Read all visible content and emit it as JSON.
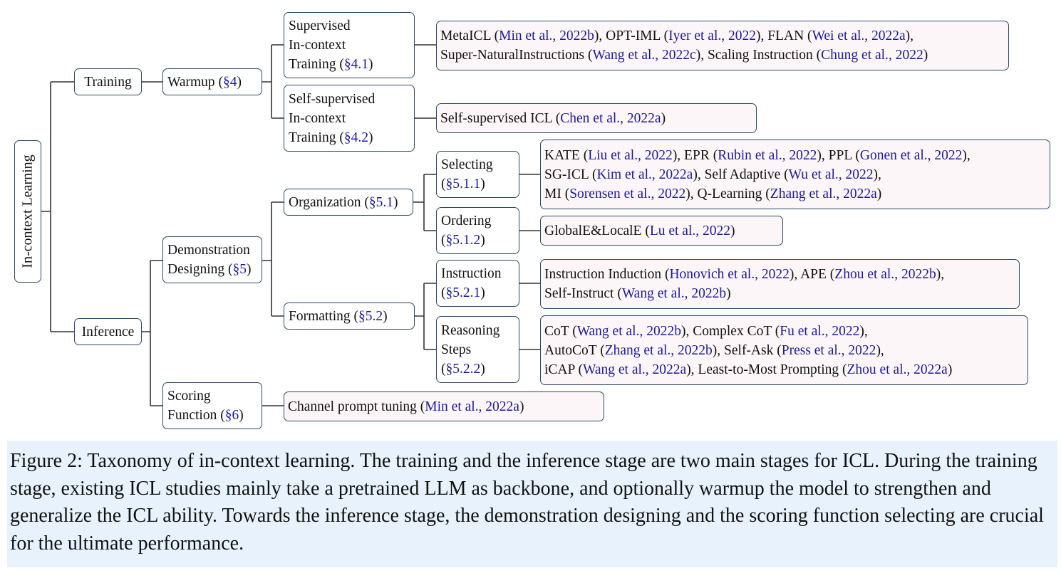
{
  "diagram": {
    "root": "In-context Learning",
    "training": {
      "label": "Training",
      "warmup": {
        "label": "Warmup (",
        "ref": "§4",
        "close": ")"
      },
      "supervised": {
        "lines": [
          "Supervised",
          "In-context",
          "Training ("
        ],
        "ref": "§4.1",
        "close": ")"
      },
      "supervised_leaf": [
        [
          [
            "MetaICL (",
            ""
          ],
          [
            "Min et al., 2022b",
            "c"
          ],
          [
            "), OPT-IML (",
            ""
          ],
          [
            "Iyer et al., 2022",
            "c"
          ],
          [
            "), FLAN (",
            ""
          ],
          [
            "Wei et al., 2022a",
            "c"
          ],
          [
            "),",
            ""
          ]
        ],
        [
          [
            "Super-NaturalInstructions (",
            ""
          ],
          [
            "Wang et al., 2022c",
            "c"
          ],
          [
            "), Scaling Instruction (",
            ""
          ],
          [
            "Chung et al., 2022",
            "c"
          ],
          [
            ")",
            ""
          ]
        ]
      ],
      "selfsup": {
        "lines": [
          "Self-supervised",
          "In-context",
          "Training ("
        ],
        "ref": "§4.2",
        "close": ")"
      },
      "selfsup_leaf": [
        [
          [
            "Self-supervised ICL  (",
            ""
          ],
          [
            "Chen et al., 2022a",
            "c"
          ],
          [
            ")",
            ""
          ]
        ]
      ]
    },
    "inference": {
      "label": "Inference",
      "demo": {
        "lines": [
          "Demonstration",
          "Designing ("
        ],
        "ref": "§5",
        "close": ")"
      },
      "organization": {
        "label": "Organization (",
        "ref": "§5.1",
        "close": ")"
      },
      "selecting": {
        "lines": [
          "Selecting",
          "("
        ],
        "ref": "§5.1.1",
        "close": ")"
      },
      "selecting_leaf": [
        [
          [
            "KATE (",
            ""
          ],
          [
            "Liu et al., 2022",
            "c"
          ],
          [
            "), EPR (",
            ""
          ],
          [
            "Rubin et al., 2022",
            "c"
          ],
          [
            "), PPL (",
            ""
          ],
          [
            "Gonen et al., 2022",
            "c"
          ],
          [
            "),",
            ""
          ]
        ],
        [
          [
            "SG-ICL (",
            ""
          ],
          [
            "Kim et al., 2022a",
            "c"
          ],
          [
            "), Self Adaptive (",
            ""
          ],
          [
            "Wu et al., 2022",
            "c"
          ],
          [
            "),",
            ""
          ]
        ],
        [
          [
            "MI (",
            ""
          ],
          [
            "Sorensen et al., 2022",
            "c"
          ],
          [
            "), Q-Learning (",
            ""
          ],
          [
            "Zhang et al., 2022a",
            "c"
          ],
          [
            ")",
            ""
          ]
        ]
      ],
      "ordering": {
        "lines": [
          "Ordering",
          "("
        ],
        "ref": "§5.1.2",
        "close": ")"
      },
      "ordering_leaf": [
        [
          [
            "GlobalE&LocalE (",
            ""
          ],
          [
            "Lu et al., 2022",
            "c"
          ],
          [
            ")",
            ""
          ]
        ]
      ],
      "formatting": {
        "label": "Formatting (",
        "ref": "§5.2",
        "close": ")"
      },
      "instruction": {
        "lines": [
          "Instruction",
          "("
        ],
        "ref": "§5.2.1",
        "close": ")"
      },
      "instruction_leaf": [
        [
          [
            "Instruction Induction (",
            ""
          ],
          [
            "Honovich et al., 2022",
            "c"
          ],
          [
            "), APE (",
            ""
          ],
          [
            "Zhou et al., 2022b",
            "c"
          ],
          [
            "),",
            ""
          ]
        ],
        [
          [
            "Self-Instruct (",
            ""
          ],
          [
            "Wang et al., 2022b",
            "c"
          ],
          [
            ")",
            ""
          ]
        ]
      ],
      "reasoning": {
        "lines": [
          "Reasoning",
          "Steps",
          "("
        ],
        "ref": "§5.2.2",
        "close": ")"
      },
      "reasoning_leaf": [
        [
          [
            "CoT (",
            ""
          ],
          [
            "Wang et al., 2022b",
            "c"
          ],
          [
            "), Complex CoT (",
            ""
          ],
          [
            "Fu et al., 2022",
            "c"
          ],
          [
            "),",
            ""
          ]
        ],
        [
          [
            "AutoCoT (",
            ""
          ],
          [
            "Zhang et al., 2022b",
            "c"
          ],
          [
            "), Self-Ask (",
            ""
          ],
          [
            "Press et al., 2022",
            "c"
          ],
          [
            "),",
            ""
          ]
        ],
        [
          [
            "iCAP (",
            ""
          ],
          [
            "Wang et al., 2022a",
            "c"
          ],
          [
            "), Least-to-Most Prompting (",
            ""
          ],
          [
            "Zhou et al., 2022a",
            "c"
          ],
          [
            ")",
            ""
          ]
        ]
      ],
      "scoring": {
        "lines": [
          "Scoring",
          "Function ("
        ],
        "ref": "§6",
        "close": ")"
      },
      "scoring_leaf": [
        [
          [
            "Channel prompt tuning  (",
            ""
          ],
          [
            "Min et al., 2022a",
            "c"
          ],
          [
            ")",
            ""
          ]
        ]
      ]
    }
  },
  "caption": "Figure 2: Taxonomy of in-context learning. The training and the inference stage are two main stages for ICL. During the training stage, existing ICL studies mainly take a pretrained LLM as backbone, and optionally warmup the model to strengthen and generalize the ICL ability. Towards the inference stage, the demonstration designing and the scoring function selecting are crucial for the ultimate performance."
}
